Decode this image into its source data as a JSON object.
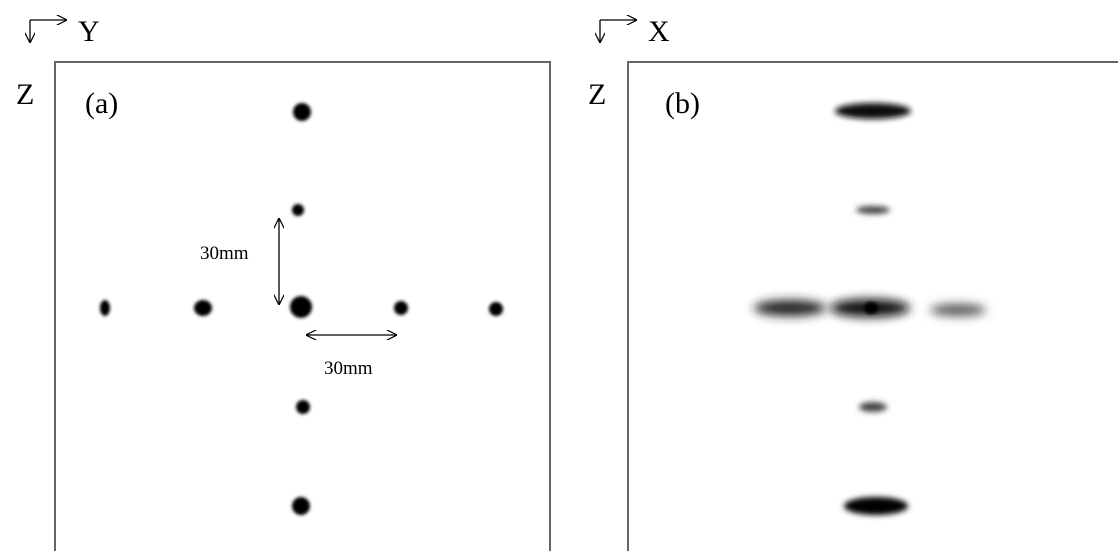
{
  "panels": [
    {
      "label": "(a)",
      "axes": {
        "horizontal": "Y",
        "vertical": "Z"
      },
      "scale_labels": [
        "30mm",
        "30mm"
      ]
    },
    {
      "label": "(b)",
      "axes": {
        "horizontal": "X",
        "vertical": "Z"
      }
    }
  ]
}
